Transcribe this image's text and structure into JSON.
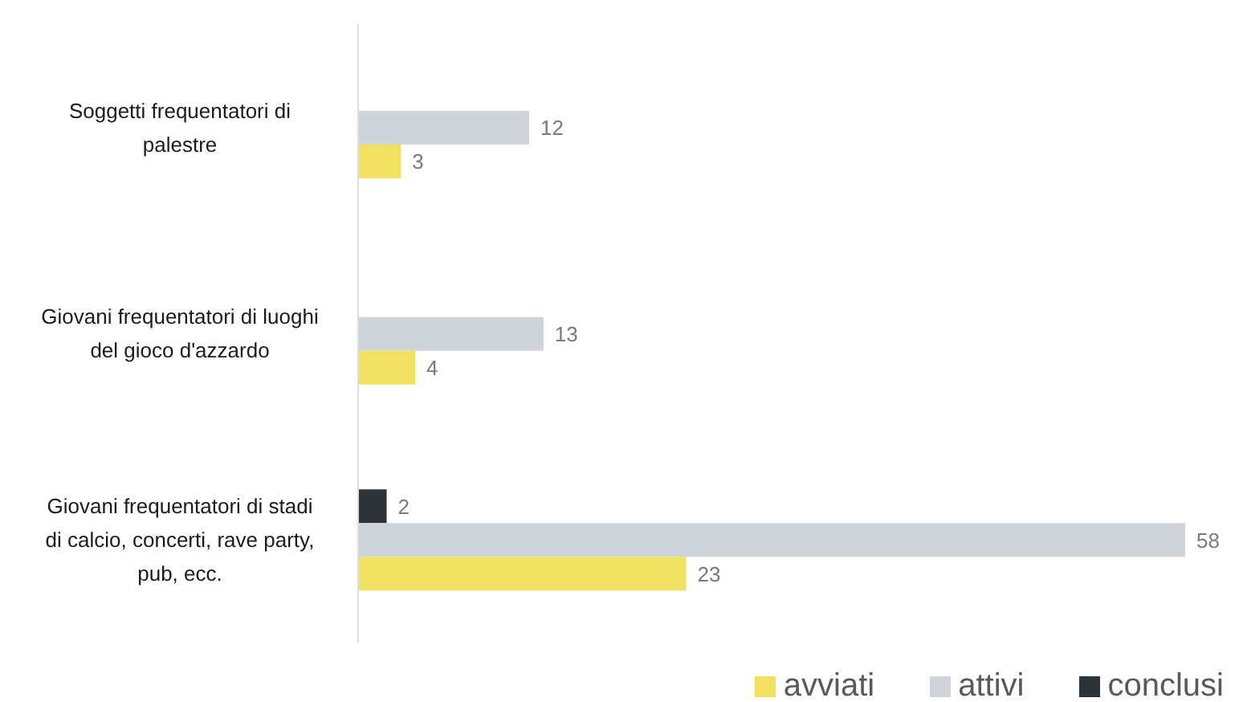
{
  "chart_data": {
    "type": "bar",
    "orientation": "horizontal",
    "categories": [
      "Soggetti frequentatori di palestre",
      "Giovani frequentatori di luoghi del gioco d'azzardo",
      "Giovani frequentatori di stadi di calcio, concerti, rave party, pub, ecc."
    ],
    "series": [
      {
        "name": "avviati",
        "color": "#f2e15f",
        "values": [
          3,
          4,
          23
        ]
      },
      {
        "name": "attivi",
        "color": "#cfd4da",
        "values": [
          12,
          13,
          58
        ]
      },
      {
        "name": "conclusi",
        "color": "#2d3438",
        "values": [
          null,
          null,
          2
        ]
      }
    ],
    "data_labels": true,
    "legend": "bottom right",
    "tick_labels": "y"
  }
}
